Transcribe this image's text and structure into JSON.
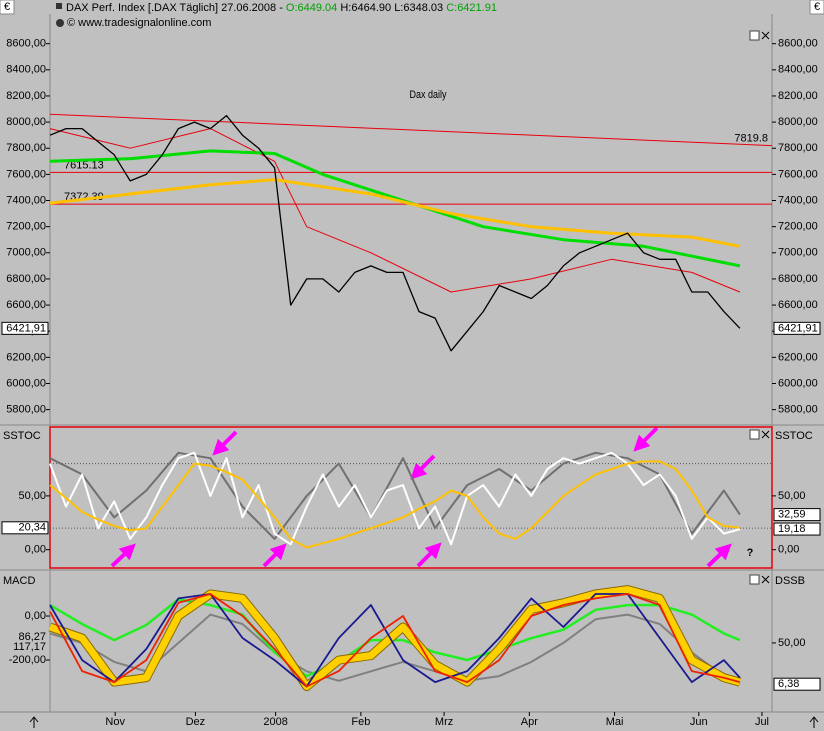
{
  "header": {
    "currency": "€",
    "symbol": "DAX Perf. Index [.DAX Täglich] 27.06.2008 -",
    "open": "O:6449.04",
    "high": "H:6464.90",
    "low": "L:6348.03",
    "close": "C:6421.91",
    "copyright": "© www.tradesignalonline.com"
  },
  "chart_data": [
    {
      "type": "line",
      "title": "Dax daily",
      "xlim": [
        0,
        180
      ],
      "ylim": [
        5690,
        8720
      ],
      "yticks_side": "both",
      "yticks": [
        {
          "value": 5800,
          "label": "5800,00"
        },
        {
          "value": 6000,
          "label": "6000,00"
        },
        {
          "value": 6200,
          "label": "6200,00"
        },
        {
          "value": 6400,
          "label": "6400,00"
        },
        {
          "value": 6600,
          "label": "6600,00"
        },
        {
          "value": 6800,
          "label": "6800,00"
        },
        {
          "value": 7000,
          "label": "7000,00"
        },
        {
          "value": 7200,
          "label": "7200,00"
        },
        {
          "value": 7400,
          "label": "7400,00"
        },
        {
          "value": 7600,
          "label": "7600,00"
        },
        {
          "value": 7800,
          "label": "7800,00"
        },
        {
          "value": 8000,
          "label": "8000,00"
        },
        {
          "value": 8200,
          "label": "8200,00"
        },
        {
          "value": 8400,
          "label": "8400,00"
        },
        {
          "value": 8600,
          "label": "8600,00"
        }
      ],
      "hlines": [
        7615.13,
        7372.39
      ],
      "hline_color": "#e8000b",
      "trendline": {
        "x": [
          0,
          180
        ],
        "values": [
          8060,
          7819.8
        ],
        "color": "#e8000b"
      },
      "last_labels": [
        {
          "value": 6421.91,
          "label": "6421,91",
          "side": "both"
        }
      ],
      "x": [
        0,
        4,
        8,
        12,
        16,
        20,
        24,
        28,
        32,
        36,
        40,
        44,
        48,
        52,
        56,
        60,
        64,
        68,
        72,
        76,
        80,
        84,
        88,
        92,
        96,
        100,
        104,
        108,
        112,
        116,
        120,
        124,
        128,
        132,
        136,
        140,
        144,
        148,
        152,
        156,
        160,
        164,
        168,
        172
      ],
      "series": [
        {
          "color": "#e8000b",
          "width": 1,
          "x": [
            0,
            20,
            40,
            56,
            64,
            80,
            100,
            120,
            140,
            160,
            172
          ],
          "values": [
            7950,
            7800,
            7950,
            7700,
            7200,
            7000,
            6700,
            6800,
            6950,
            6850,
            6700
          ]
        },
        {
          "color": "#00dd00",
          "width": 3,
          "x": [
            0,
            20,
            40,
            56,
            68,
            88,
            108,
            128,
            148,
            172
          ],
          "values": [
            7700,
            7720,
            7780,
            7760,
            7600,
            7400,
            7200,
            7100,
            7050,
            6900
          ]
        },
        {
          "color": "#ffc000",
          "width": 3,
          "x": [
            0,
            40,
            56,
            80,
            100,
            120,
            140,
            160,
            172
          ],
          "values": [
            7380,
            7520,
            7560,
            7450,
            7300,
            7200,
            7150,
            7120,
            7050
          ]
        },
        {
          "color": "#000000",
          "width": 1.3,
          "values": [
            7900,
            7950,
            7950,
            7850,
            7750,
            7550,
            7600,
            7750,
            7950,
            8000,
            7950,
            8050,
            7900,
            7800,
            7650,
            6600,
            6800,
            6800,
            6700,
            6850,
            6900,
            6850,
            6850,
            6550,
            6500,
            6250,
            6400,
            6550,
            6750,
            6700,
            6650,
            6750,
            6900,
            7000,
            7050,
            7100,
            7150,
            7000,
            6950,
            6950,
            6700,
            6700,
            6550,
            6421.91
          ]
        }
      ]
    },
    {
      "type": "line",
      "title": "SSTOC",
      "title_right": "SSTOC",
      "note": "?",
      "frame_color": "#e8000b",
      "xlim": [
        0,
        180
      ],
      "ylim": [
        -17,
        114
      ],
      "yticks_side": "both",
      "yticks": [
        {
          "value": 0,
          "label": "0,00"
        },
        {
          "value": 50,
          "label": "50,00"
        }
      ],
      "levels": [
        80,
        20
      ],
      "last_labels": [
        {
          "value": 20.34,
          "label": "20,34",
          "side": "left"
        },
        {
          "value": 32.59,
          "label": "32,59",
          "side": "right"
        },
        {
          "value": 19.18,
          "label": "19,18",
          "side": "right"
        }
      ],
      "x": [
        0,
        4,
        8,
        12,
        16,
        20,
        24,
        28,
        32,
        36,
        40,
        44,
        48,
        52,
        56,
        60,
        64,
        68,
        72,
        76,
        80,
        84,
        88,
        92,
        96,
        100,
        104,
        108,
        112,
        116,
        120,
        124,
        128,
        132,
        136,
        140,
        144,
        148,
        152,
        156,
        160,
        164,
        168,
        172
      ],
      "series": [
        {
          "color": "#707070",
          "width": 2,
          "x": [
            0,
            8,
            16,
            24,
            32,
            40,
            48,
            56,
            64,
            72,
            80,
            88,
            96,
            104,
            112,
            120,
            128,
            136,
            144,
            152,
            160,
            168,
            172
          ],
          "values": [
            85,
            70,
            30,
            55,
            90,
            85,
            40,
            10,
            50,
            80,
            30,
            85,
            20,
            60,
            75,
            55,
            80,
            90,
            85,
            70,
            15,
            55,
            32.59
          ]
        },
        {
          "color": "#ffffff",
          "width": 2,
          "values": [
            80,
            40,
            70,
            20,
            45,
            10,
            30,
            60,
            85,
            90,
            50,
            85,
            30,
            60,
            15,
            5,
            40,
            70,
            40,
            60,
            30,
            55,
            60,
            20,
            40,
            5,
            50,
            60,
            40,
            70,
            50,
            75,
            85,
            80,
            85,
            90,
            80,
            60,
            70,
            50,
            10,
            30,
            15,
            19.18
          ]
        },
        {
          "color": "#ffc000",
          "width": 2,
          "values": [
            60,
            48,
            35,
            28,
            22,
            18,
            20,
            40,
            60,
            80,
            78,
            72,
            65,
            48,
            30,
            10,
            2,
            6,
            10,
            15,
            20,
            25,
            30,
            38,
            45,
            55,
            50,
            30,
            15,
            10,
            20,
            35,
            50,
            60,
            70,
            75,
            80,
            82,
            82,
            75,
            55,
            30,
            22,
            20.34
          ]
        }
      ]
    },
    {
      "type": "line",
      "title": "MACD",
      "title_right": "DSSB",
      "xlim": [
        0,
        180
      ],
      "ylim": [
        -436,
        200
      ],
      "y2lim": [
        -23,
        125
      ],
      "yticks_side": "left",
      "yticks": [
        {
          "value": 0,
          "label": "0,00"
        },
        {
          "value": -200,
          "label": "-200,00"
        }
      ],
      "y2ticks": [
        {
          "value": 50,
          "label": "50,00"
        }
      ],
      "readouts": [
        "86,27",
        "117,17"
      ],
      "last_labels": [
        {
          "value": 6.38,
          "label": "6,38",
          "side": "right",
          "axis": "y2"
        }
      ],
      "xticks": [
        {
          "value": 16.25,
          "label": "Nov"
        },
        {
          "value": 36.25,
          "label": "Dez"
        },
        {
          "value": 56.25,
          "label": "2008"
        },
        {
          "value": 77.5,
          "label": "Feb"
        },
        {
          "value": 98.25,
          "label": "Mrz"
        },
        {
          "value": 119.5,
          "label": "Apr"
        },
        {
          "value": 140.75,
          "label": "Mai"
        },
        {
          "value": 161.75,
          "label": "Jun"
        },
        {
          "value": 177.5,
          "label": "Jul"
        }
      ],
      "x": [
        0,
        8,
        16,
        24,
        32,
        40,
        48,
        56,
        64,
        72,
        80,
        88,
        96,
        104,
        112,
        120,
        128,
        136,
        144,
        152,
        160,
        168,
        172
      ],
      "series": [
        {
          "color": "#808080",
          "width": 2,
          "axis": "y2",
          "values": [
            60,
            50,
            30,
            20,
            50,
            80,
            70,
            40,
            20,
            10,
            20,
            30,
            20,
            10,
            15,
            30,
            50,
            75,
            80,
            70,
            40,
            15,
            6.38
          ]
        },
        {
          "color": "#22ee22",
          "width": 2.5,
          "axis": "y2",
          "values": [
            90,
            70,
            53,
            69,
            96,
            90,
            80,
            40,
            15,
            30,
            53,
            53,
            40,
            32,
            43,
            55,
            64,
            85,
            90,
            90,
            80,
            60,
            53
          ]
        },
        {
          "color": "#ffd000",
          "width": 7,
          "values": [
            -50,
            -100,
            -300,
            -280,
            0,
            100,
            80,
            -100,
            -320,
            -200,
            -180,
            -50,
            -220,
            -300,
            -150,
            30,
            60,
            100,
            120,
            80,
            -200,
            -280,
            -300
          ]
        },
        {
          "color": "#1a1a90",
          "width": 1.8,
          "values": [
            50,
            -200,
            -300,
            -150,
            80,
            100,
            -100,
            -200,
            -320,
            -100,
            50,
            -200,
            -300,
            -250,
            -100,
            80,
            -50,
            100,
            100,
            -100,
            -300,
            -200,
            -280
          ]
        },
        {
          "color": "#ee2200",
          "width": 1.8,
          "values": [
            20,
            -250,
            -300,
            -200,
            60,
            100,
            0,
            -150,
            -320,
            -250,
            -100,
            0,
            -250,
            -300,
            -200,
            0,
            50,
            80,
            100,
            50,
            -250,
            -280,
            -300
          ]
        }
      ]
    }
  ]
}
